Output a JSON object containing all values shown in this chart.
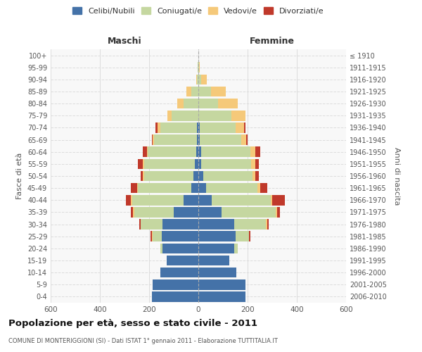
{
  "age_groups": [
    "0-4",
    "5-9",
    "10-14",
    "15-19",
    "20-24",
    "25-29",
    "30-34",
    "35-39",
    "40-44",
    "45-49",
    "50-54",
    "55-59",
    "60-64",
    "65-69",
    "70-74",
    "75-79",
    "80-84",
    "85-89",
    "90-94",
    "95-99",
    "100+"
  ],
  "birth_years": [
    "2006-2010",
    "2001-2005",
    "1996-2000",
    "1991-1995",
    "1986-1990",
    "1981-1985",
    "1976-1980",
    "1971-1975",
    "1966-1970",
    "1961-1965",
    "1956-1960",
    "1951-1955",
    "1946-1950",
    "1941-1945",
    "1936-1940",
    "1931-1935",
    "1926-1930",
    "1921-1925",
    "1916-1920",
    "1911-1915",
    "≤ 1910"
  ],
  "male": {
    "celibi": [
      190,
      185,
      155,
      130,
      145,
      150,
      145,
      100,
      60,
      30,
      20,
      15,
      10,
      5,
      5,
      0,
      0,
      0,
      0,
      0,
      0
    ],
    "coniugati": [
      0,
      0,
      0,
      0,
      10,
      35,
      90,
      160,
      210,
      215,
      200,
      205,
      195,
      175,
      150,
      110,
      60,
      30,
      5,
      2,
      0
    ],
    "vedovi": [
      0,
      0,
      0,
      0,
      0,
      5,
      0,
      5,
      5,
      5,
      5,
      5,
      5,
      5,
      10,
      15,
      25,
      20,
      5,
      2,
      0
    ],
    "divorziati": [
      0,
      0,
      0,
      0,
      0,
      5,
      5,
      10,
      20,
      25,
      10,
      20,
      15,
      5,
      10,
      0,
      0,
      0,
      0,
      0,
      0
    ]
  },
  "female": {
    "nubili": [
      190,
      190,
      155,
      125,
      145,
      150,
      145,
      95,
      55,
      30,
      20,
      10,
      10,
      5,
      5,
      0,
      0,
      0,
      0,
      0,
      0
    ],
    "coniugate": [
      0,
      0,
      0,
      0,
      15,
      55,
      130,
      220,
      240,
      210,
      200,
      205,
      200,
      170,
      145,
      135,
      80,
      50,
      10,
      2,
      0
    ],
    "vedove": [
      0,
      0,
      0,
      0,
      0,
      0,
      5,
      5,
      5,
      10,
      10,
      15,
      20,
      20,
      35,
      55,
      80,
      60,
      25,
      5,
      0
    ],
    "divorziate": [
      0,
      0,
      0,
      0,
      0,
      5,
      5,
      10,
      50,
      30,
      15,
      15,
      20,
      5,
      5,
      0,
      0,
      0,
      0,
      0,
      0
    ]
  },
  "colors": {
    "celibi": "#4472a8",
    "coniugati": "#c5d7a0",
    "vedovi": "#f5c97a",
    "divorziati": "#c0392b"
  },
  "xlim": 600,
  "title": "Popolazione per età, sesso e stato civile - 2011",
  "subtitle": "COMUNE DI MONTERIGGIONI (SI) - Dati ISTAT 1° gennaio 2011 - Elaborazione TUTTITALIA.IT",
  "ylabel_left": "Fasce di età",
  "ylabel_right": "Anni di nascita",
  "xlabel_left": "Maschi",
  "xlabel_right": "Femmine"
}
